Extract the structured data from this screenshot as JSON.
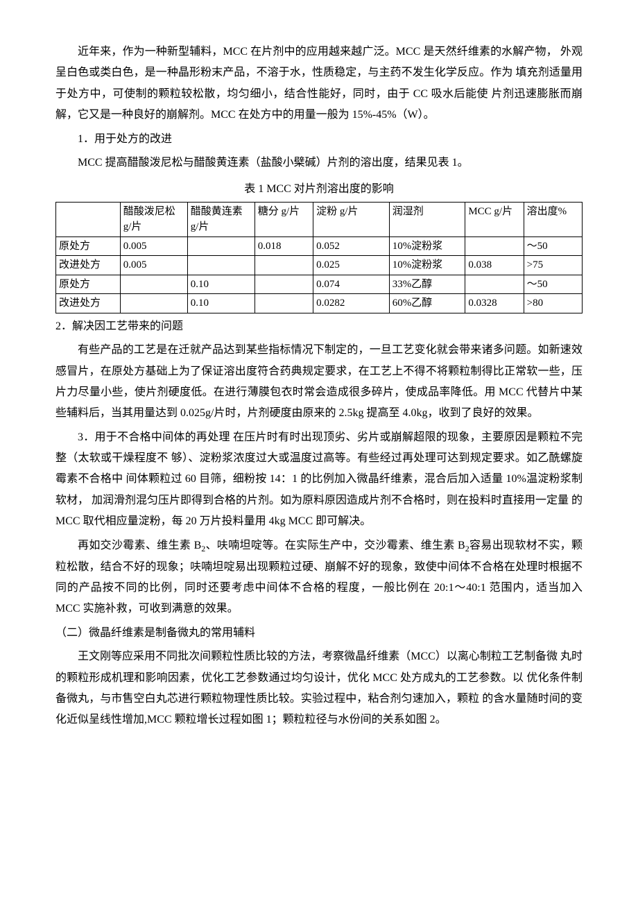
{
  "p1": "近年来，作为一种新型辅料，MCC 在片剂中的应用越来越广泛。MCC 是天然纤维素的水解产物，  外观呈白色或类白色，是一种晶形粉末产品，不溶于水，性质稳定，与主药不发生化学反应。作为 填充剂适量用于处方中，可使制的颗粒较松散，均匀细小，结合性能好，同时，由于 CC 吸水后能使 片剂迅速膨胀而崩解，它又是一种良好的崩解剂。MCC 在处方中的用量一般为 15%-45%（W）。",
  "p2": "1．用于处方的改进",
  "p3": "MCC 提高醋酸泼尼松与醋酸黄连素（盐酸小檗碱）片剂的溶出度，结果见表 1。",
  "table_caption": "表 1 MCC 对片剂溶出度的影响",
  "table": {
    "header": [
      "",
      "醋酸泼尼松 g/片",
      "醋酸黄连素 g/片",
      "糖分 g/片",
      "淀粉 g/片",
      "润湿剂",
      "MCC g/片",
      "溶出度%"
    ],
    "rows": [
      [
        "原处方",
        "0.005",
        "",
        "0.018",
        "0.052",
        "10%淀粉浆",
        "",
        "〜50"
      ],
      [
        "改进处方",
        "0.005",
        "",
        "",
        "0.025",
        "10%淀粉浆",
        "0.038",
        ">75"
      ],
      [
        "原处方",
        "",
        "0.10",
        "",
        "0.074",
        "33%乙醇",
        "",
        "〜50"
      ],
      [
        "改进处方",
        "",
        "0.10",
        "",
        "0.0282",
        "60%乙醇",
        "0.0328",
        ">80"
      ]
    ]
  },
  "p4": "2．解决因工艺带来的问题",
  "p5": "有些产品的工艺是在迁就产品达到某些指标情况下制定的，一旦工艺变化就会带来诸多问题。如新速效感冒片，在原处方基础上为了保证溶出度符合药典规定要求，在工艺上不得不将颗粒制得比正常软一些，压片力尽量小些，使片剂硬度低。在进行薄膜包衣时常会造成很多碎片，使成品率降低。用 MCC 代替片中某些辅料后，当其用量达到 0.025g/片时，片剂硬度由原来的 2.5kg 提高至 4.0kg，收到了良好的效果。",
  "p6": "3．用于不合格中间体的再处理 在压片时有时出现顶劣、劣片或崩解超限的现象，主要原因是颗粒不完整（太软或干燥程度不 够）、淀粉浆浓度过大或温度过高等。有些经过再处理可达到规定要求。如乙酰螺旋霉素不合格中 间体颗粒过 60 目筛，细粉按 14：1 的比例加入微晶纤维素，混合后加入适量 10%温淀粉浆制软材， 加润滑剂混匀压片即得到合格的片剂。如为原料原因造成片剂不合格时，则在投料时直接用一定量 的 MCC 取代相应量淀粉，每 20 万片投料量用 4kg MCC 即可解决。",
  "p7a": "再如交沙霉素、维生素 B",
  "p7b": "、呋喃坦啶等。在实际生产中，交沙霉素、维生素 B",
  "p7c": "容易出现软材不实，颗粒松散，结合不好的现象；呋喃坦啶易出现颗粒过硬、崩解不好的现象，致使中间体不合格在处理时根据不同的产品按不同的比例，同时还要考虑中间体不合格的程度，一般比例在 20:1〜40:1 范围内，适当加入 MCC 实施补救，可收到满意的效果。",
  "p8": "（二）微晶纤维素是制备微丸的常用辅料",
  "p9": "王文刚等应采用不同批次间颗粒性质比较的方法，考察微晶纤维素（MCC）以离心制粒工艺制备微 丸时的颗粒形成机理和影响因素，优化工艺参数通过均匀设计，优化 MCC 处方成丸的工艺参数。以 优化条件制备微丸，与市售空白丸芯进行颗粒物理性质比较。实验过程中，粘合剂匀速加入，颗粒 的含水量随时间的变化近似呈线性增加,MCC 颗粒增长过程如图 1；颗粒粒径与水份间的关系如图 2。"
}
